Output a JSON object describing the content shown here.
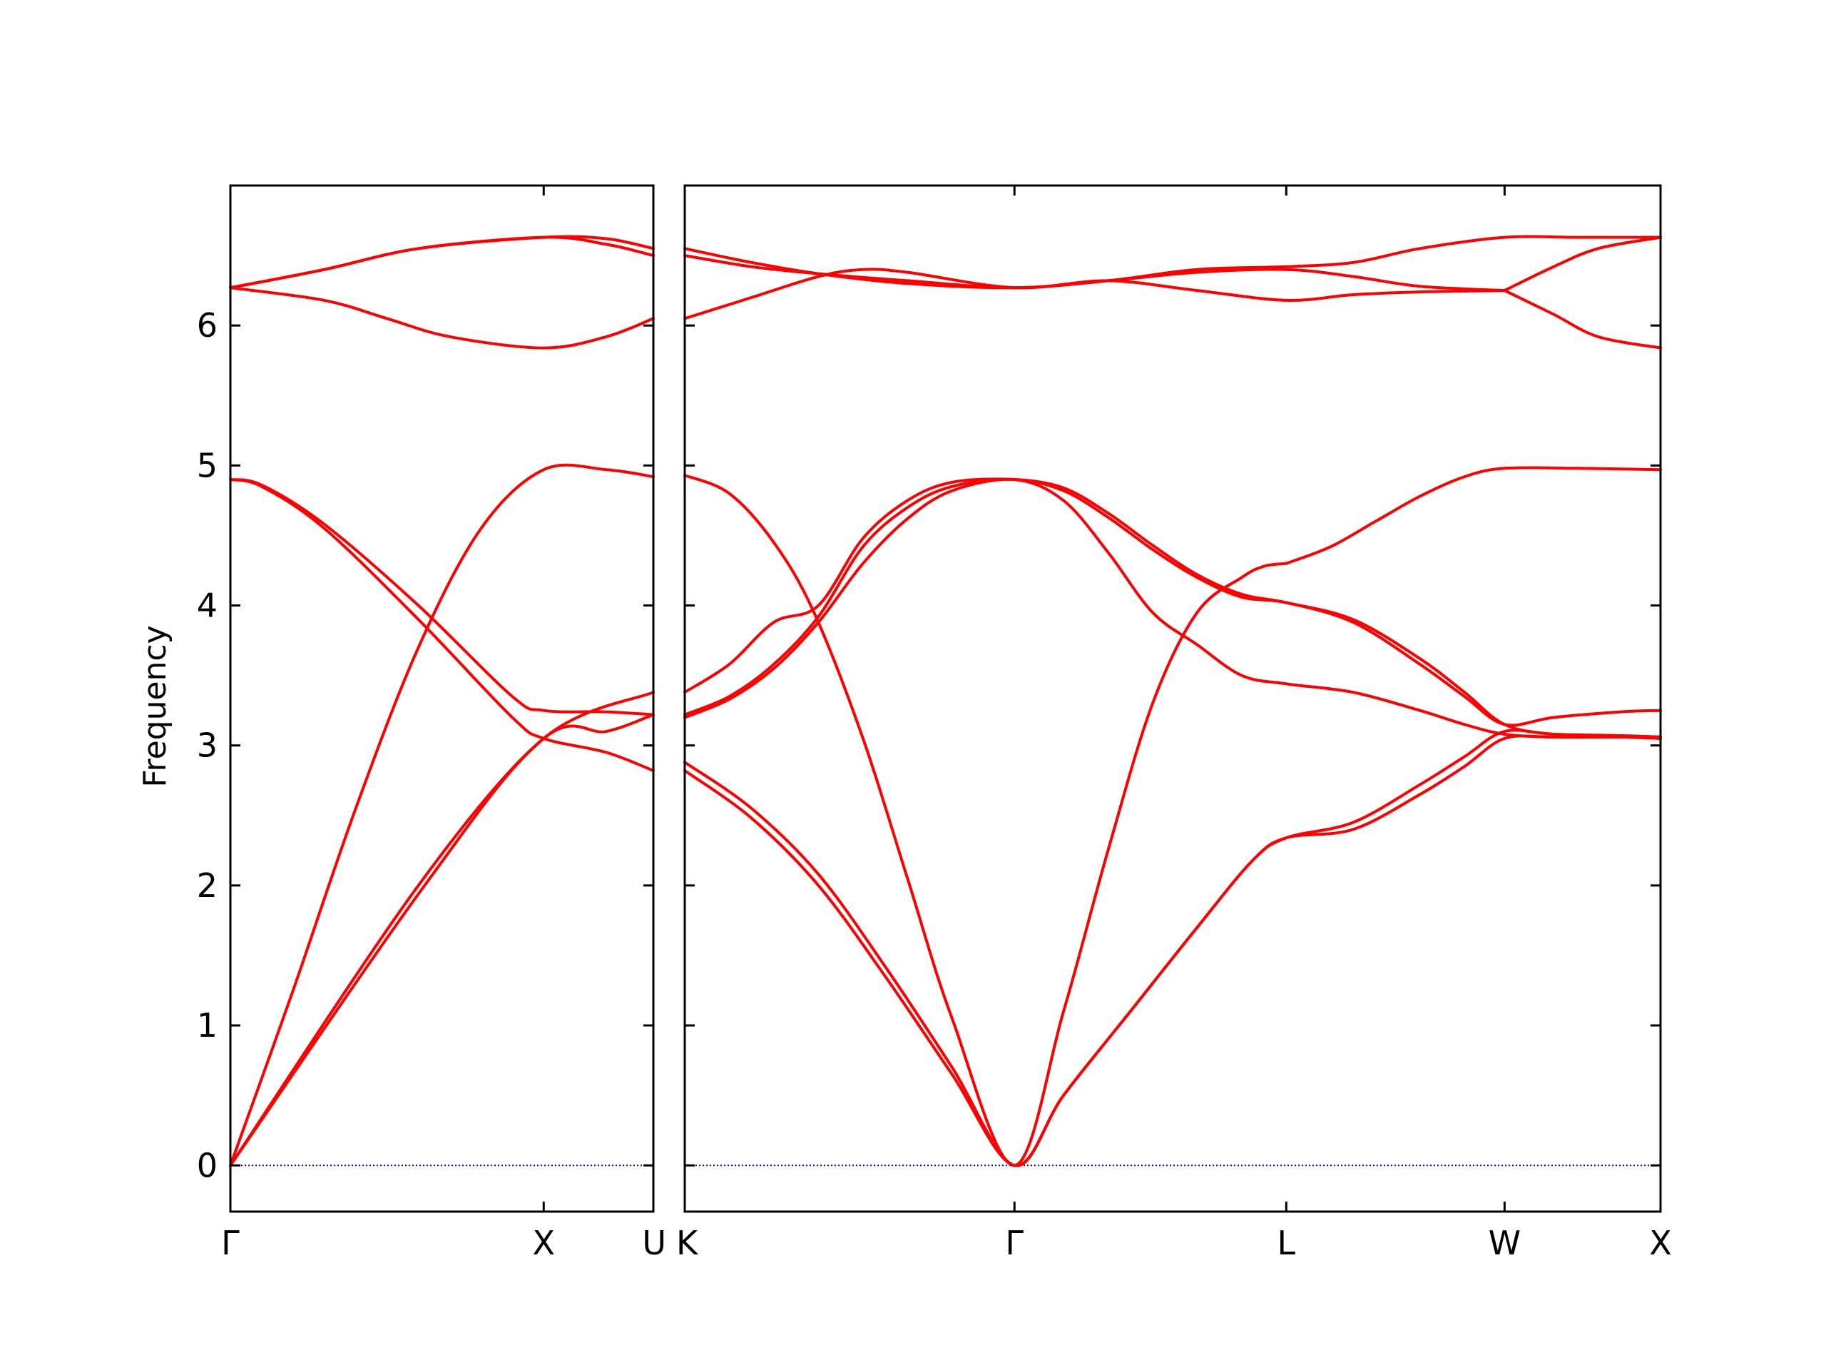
{
  "chart_data": {
    "type": "line",
    "ylabel": "Frequency",
    "ylim": [
      -0.33,
      7.0
    ],
    "yticks": [
      "0",
      "1",
      "2",
      "3",
      "4",
      "5",
      "6"
    ],
    "colors": {
      "bands": "#ff0000",
      "zero_line": "#0000cc",
      "axes": "#000000"
    },
    "grid": false,
    "panels": [
      {
        "name": "Γ–X–U",
        "xlim": [
          0,
          1.35
        ],
        "xticks": [
          {
            "pos": 0,
            "label": "Γ"
          },
          {
            "pos": 1.0,
            "label": "X"
          },
          {
            "pos": 1.35,
            "label": "U"
          }
        ],
        "bands": [
          {
            "x": [
              0,
              0.62,
              1.0,
              1.35
            ],
            "y": [
              0,
              2.0,
              3.05,
              3.38
            ]
          },
          {
            "x": [
              0,
              0.2,
              0.4,
              0.6,
              0.8,
              1.0,
              1.2,
              1.35
            ],
            "y": [
              0,
              1.25,
              2.55,
              3.7,
              4.55,
              4.97,
              4.97,
              4.92
            ]
          },
          {
            "x": [
              0,
              0.1,
              0.3,
              0.6,
              0.9,
              1.0,
              1.2,
              1.35
            ],
            "y": [
              4.9,
              4.85,
              4.55,
              3.9,
              3.2,
              3.05,
              2.95,
              2.82
            ]
          },
          {
            "x": [
              0,
              0.1,
              0.3,
              0.6,
              0.9,
              1.0,
              1.2,
              1.35
            ],
            "y": [
              4.9,
              4.86,
              4.58,
              4.0,
              3.35,
              3.25,
              3.24,
              3.22
            ]
          },
          {
            "x": [
              0,
              0.3,
              0.5,
              0.7,
              1.0,
              1.2,
              1.35
            ],
            "y": [
              6.27,
              6.18,
              6.05,
              5.92,
              5.84,
              5.92,
              6.05
            ]
          },
          {
            "x": [
              0,
              0.3,
              0.6,
              1.0,
              1.2,
              1.35
            ],
            "y": [
              6.27,
              6.4,
              6.55,
              6.63,
              6.58,
              6.5
            ]
          },
          {
            "x": [
              0,
              0.3,
              0.6,
              1.0,
              1.2,
              1.35
            ],
            "y": [
              6.27,
              6.4,
              6.55,
              6.63,
              6.62,
              6.55
            ]
          },
          {
            "x": [
              0,
              0.6,
              1.0,
              1.2,
              1.35
            ],
            "y": [
              0,
              2.0,
              3.05,
              3.1,
              3.22
            ]
          }
        ]
      },
      {
        "name": "K–Γ–L–W–X",
        "xlim": [
          0,
          4.38
        ],
        "xticks": [
          {
            "pos": 0,
            "label": "K"
          },
          {
            "pos": 1.48,
            "label": "Γ"
          },
          {
            "pos": 2.7,
            "label": "L"
          },
          {
            "pos": 3.68,
            "label": "W"
          },
          {
            "pos": 4.38,
            "label": "X"
          }
        ],
        "bands": [
          {
            "x": [
              0,
              0.3,
              0.6,
              0.9,
              1.2,
              1.48,
              1.7,
              2.0,
              2.3,
              2.55,
              2.7,
              3.0,
              3.3,
              3.5,
              3.68,
              3.9,
              4.2,
              4.38
            ],
            "y": [
              2.82,
              2.48,
              2.0,
              1.35,
              0.65,
              0,
              0.5,
              1.1,
              1.7,
              2.18,
              2.34,
              2.4,
              2.65,
              2.85,
              3.05,
              3.06,
              3.06,
              3.05
            ]
          },
          {
            "x": [
              0,
              0.3,
              0.6,
              0.9,
              1.2,
              1.48,
              1.7,
              2.0,
              2.3,
              2.55,
              2.7,
              3.0,
              3.3,
              3.5,
              3.68,
              3.9,
              4.2,
              4.38
            ],
            "y": [
              2.88,
              2.55,
              2.08,
              1.42,
              0.7,
              0,
              0.5,
              1.1,
              1.7,
              2.18,
              2.34,
              2.45,
              2.72,
              2.92,
              3.1,
              3.08,
              3.07,
              3.06
            ]
          },
          {
            "x": [
              0,
              0.2,
              0.4,
              0.58,
              0.8,
              1.0,
              1.2,
              1.48,
              1.7,
              1.9,
              2.1,
              2.3,
              2.5,
              2.6,
              2.7
            ],
            "y": [
              4.93,
              4.8,
              4.45,
              3.95,
              3.05,
              2.05,
              1.05,
              0,
              1.1,
              2.25,
              3.3,
              3.95,
              4.2,
              4.28,
              4.3
            ]
          },
          {
            "x": [
              2.7,
              2.9,
              3.1,
              3.3,
              3.5,
              3.68,
              4.0,
              4.38
            ],
            "y": [
              4.3,
              4.42,
              4.6,
              4.78,
              4.92,
              4.98,
              4.98,
              4.97
            ]
          },
          {
            "x": [
              0,
              0.2,
              0.4,
              0.6,
              0.8,
              1.0,
              1.2,
              1.48,
              1.7,
              1.9,
              2.1,
              2.3,
              2.5,
              2.7,
              3.0,
              3.3,
              3.5,
              3.68,
              3.9,
              4.2,
              4.38
            ],
            "y": [
              3.2,
              3.33,
              3.55,
              3.88,
              4.3,
              4.62,
              4.82,
              4.9,
              4.75,
              4.38,
              3.95,
              3.72,
              3.5,
              3.44,
              3.38,
              3.25,
              3.15,
              3.08,
              3.06,
              3.06,
              3.05
            ]
          },
          {
            "x": [
              0,
              0.2,
              0.4,
              0.6,
              0.8,
              1.0,
              1.2,
              1.48,
              1.7,
              1.9,
              2.1,
              2.3,
              2.5,
              2.7,
              3.0,
              3.3,
              3.5,
              3.68,
              3.9,
              4.2,
              4.38
            ],
            "y": [
              3.22,
              3.35,
              3.58,
              3.92,
              4.42,
              4.7,
              4.85,
              4.9,
              4.82,
              4.63,
              4.4,
              4.2,
              4.06,
              4.02,
              3.88,
              3.58,
              3.35,
              3.15,
              3.2,
              3.24,
              3.25
            ]
          },
          {
            "x": [
              0,
              0.2,
              0.4,
              0.6,
              0.8,
              1.0,
              1.2,
              1.48,
              1.7,
              1.9,
              2.1,
              2.3,
              2.5,
              2.7,
              3.0,
              3.3,
              3.5,
              3.68,
              3.9,
              4.2,
              4.38
            ],
            "y": [
              3.38,
              3.58,
              3.88,
              4.0,
              4.48,
              4.75,
              4.88,
              4.9,
              4.84,
              4.66,
              4.43,
              4.22,
              4.08,
              4.02,
              3.9,
              3.62,
              3.38,
              3.15,
              3.08,
              3.07,
              3.06
            ]
          },
          {
            "x": [
              0,
              0.3,
              0.6,
              1.0,
              1.48,
              1.9,
              2.3,
              2.7,
              3.0,
              3.3,
              3.68,
              4.0,
              4.38
            ],
            "y": [
              6.55,
              6.45,
              6.37,
              6.3,
              6.27,
              6.32,
              6.4,
              6.42,
              6.45,
              6.55,
              6.63,
              6.63,
              6.63
            ]
          },
          {
            "x": [
              0,
              0.3,
              0.6,
              1.0,
              1.48,
              1.9,
              2.3,
              2.7,
              3.0,
              3.3,
              3.68
            ],
            "y": [
              6.5,
              6.42,
              6.37,
              6.32,
              6.27,
              6.32,
              6.38,
              6.4,
              6.35,
              6.28,
              6.25
            ]
          },
          {
            "x": [
              0,
              0.3,
              0.6,
              0.8,
              1.0,
              1.48,
              1.9,
              2.3,
              2.7,
              3.0,
              3.3,
              3.68
            ],
            "y": [
              6.05,
              6.2,
              6.35,
              6.4,
              6.38,
              6.27,
              6.32,
              6.25,
              6.18,
              6.22,
              6.24,
              6.25
            ]
          },
          {
            "x": [
              3.68,
              3.9,
              4.1,
              4.38
            ],
            "y": [
              6.25,
              6.42,
              6.55,
              6.63
            ]
          },
          {
            "x": [
              3.68,
              3.9,
              4.1,
              4.38
            ],
            "y": [
              6.25,
              6.08,
              5.92,
              5.84
            ]
          }
        ]
      }
    ]
  }
}
